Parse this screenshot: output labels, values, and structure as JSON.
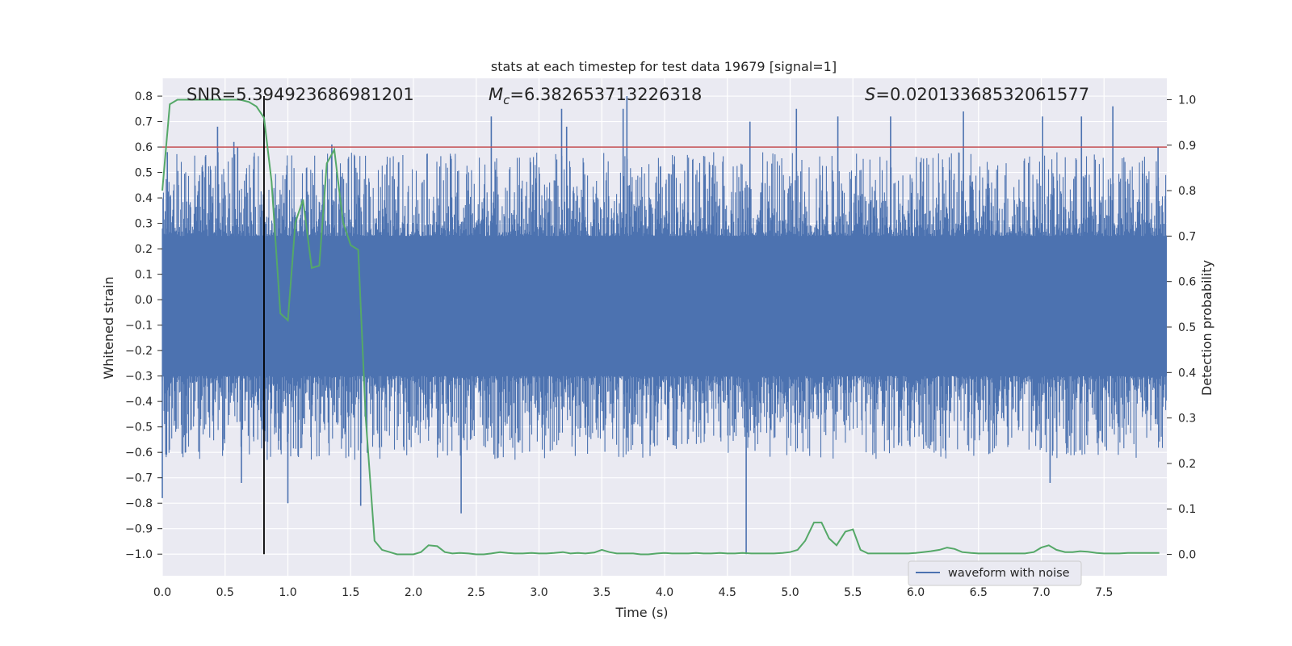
{
  "chart_data": {
    "type": "line",
    "title": "stats at each timestep for test data 19679 [signal=1]",
    "xlabel": "Time (s)",
    "ylabel_left": "Whitened strain",
    "ylabel_right": "Detection probability",
    "xlim": [
      0.0,
      8.0
    ],
    "ylim_left": [
      -1.085,
      0.87
    ],
    "ylim_right": [
      -0.047,
      1.047
    ],
    "x_ticks": [
      0.0,
      0.5,
      1.0,
      1.5,
      2.0,
      2.5,
      3.0,
      3.5,
      4.0,
      4.5,
      5.0,
      5.5,
      6.0,
      6.5,
      7.0,
      7.5
    ],
    "x_tick_labels": [
      "0.0",
      "0.5",
      "1.0",
      "1.5",
      "2.0",
      "2.5",
      "3.0",
      "3.5",
      "4.0",
      "4.5",
      "5.0",
      "5.5",
      "6.0",
      "6.5",
      "7.0",
      "7.5"
    ],
    "y_left_ticks": [
      0.8,
      0.7,
      0.6,
      0.5,
      0.4,
      0.3,
      0.2,
      0.1,
      0.0,
      -0.1,
      -0.2,
      -0.3,
      -0.4,
      -0.5,
      -0.6,
      -0.7,
      -0.8,
      -0.9,
      -1.0
    ],
    "y_left_tick_labels": [
      "0.8",
      "0.7",
      "0.6",
      "0.5",
      "0.4",
      "0.3",
      "0.2",
      "0.1",
      "0.0",
      "−0.1",
      "−0.2",
      "−0.3",
      "−0.4",
      "−0.5",
      "−0.6",
      "−0.7",
      "−0.8",
      "−0.9",
      "−1.0"
    ],
    "y_right_ticks": [
      1.0,
      0.9,
      0.8,
      0.7,
      0.6,
      0.5,
      0.4,
      0.3,
      0.2,
      0.1,
      0.0
    ],
    "y_right_tick_labels": [
      "1.0",
      "0.9",
      "0.8",
      "0.7",
      "0.6",
      "0.5",
      "0.4",
      "0.3",
      "0.2",
      "0.1",
      "0.0"
    ],
    "annotations": {
      "snr": "SNR=5.394923686981201",
      "mc_symbol": "M",
      "mc_subscript": "c",
      "mc_value": "=6.382653713226318",
      "s_symbol": "S",
      "s_value": "=0.020133685320615 77"
    },
    "threshold_line": {
      "value_left_axis": 0.6,
      "color": "#c44e52"
    },
    "marker_line": {
      "x": 0.81,
      "y_from": -1.0,
      "y_to": 0.8,
      "color": "#000000"
    },
    "series": [
      {
        "name": "waveform with noise",
        "axis": "left",
        "color": "#4c72b0",
        "kind": "noise",
        "x_range": [
          0.0,
          8.0
        ],
        "band": [
          -0.3,
          0.25
        ],
        "spikes": [
          {
            "x": 0.0,
            "value": -0.78
          },
          {
            "x": 0.04,
            "value": 0.58
          },
          {
            "x": 0.44,
            "value": 0.68
          },
          {
            "x": 0.57,
            "value": 0.62
          },
          {
            "x": 0.6,
            "value": 0.6
          },
          {
            "x": 0.63,
            "value": -0.72
          },
          {
            "x": 1.0,
            "value": -0.8
          },
          {
            "x": 1.35,
            "value": 0.61
          },
          {
            "x": 1.58,
            "value": -0.81
          },
          {
            "x": 2.38,
            "value": -0.84
          },
          {
            "x": 2.62,
            "value": 0.72
          },
          {
            "x": 3.18,
            "value": 0.75
          },
          {
            "x": 3.22,
            "value": 0.68
          },
          {
            "x": 3.67,
            "value": 0.75
          },
          {
            "x": 3.7,
            "value": 0.8
          },
          {
            "x": 4.65,
            "value": -1.0
          },
          {
            "x": 4.68,
            "value": 0.7
          },
          {
            "x": 5.05,
            "value": 0.75
          },
          {
            "x": 5.38,
            "value": 0.72
          },
          {
            "x": 5.8,
            "value": 0.72
          },
          {
            "x": 6.38,
            "value": 0.74
          },
          {
            "x": 7.01,
            "value": 0.72
          },
          {
            "x": 7.07,
            "value": -0.72
          },
          {
            "x": 7.32,
            "value": 0.72
          },
          {
            "x": 7.57,
            "value": 0.76
          },
          {
            "x": 7.93,
            "value": 0.6
          }
        ]
      },
      {
        "name": "detection probability",
        "axis": "right",
        "color": "#55a868",
        "kind": "line",
        "x": [
          0.0,
          0.06,
          0.12,
          0.18,
          0.25,
          0.31,
          0.37,
          0.44,
          0.5,
          0.56,
          0.62,
          0.69,
          0.75,
          0.81,
          0.87,
          0.94,
          1.0,
          1.06,
          1.12,
          1.19,
          1.25,
          1.31,
          1.37,
          1.44,
          1.5,
          1.56,
          1.62,
          1.69,
          1.75,
          1.81,
          1.87,
          1.94,
          2.0,
          2.06,
          2.12,
          2.19,
          2.25,
          2.31,
          2.37,
          2.44,
          2.5,
          2.56,
          2.62,
          2.69,
          2.75,
          2.81,
          2.87,
          2.94,
          3.0,
          3.06,
          3.12,
          3.19,
          3.25,
          3.31,
          3.37,
          3.44,
          3.5,
          3.56,
          3.62,
          3.69,
          3.75,
          3.81,
          3.87,
          3.94,
          4.0,
          4.06,
          4.12,
          4.19,
          4.25,
          4.31,
          4.37,
          4.44,
          4.5,
          4.56,
          4.62,
          4.69,
          4.75,
          4.81,
          4.87,
          4.94,
          5.0,
          5.06,
          5.12,
          5.19,
          5.25,
          5.31,
          5.37,
          5.44,
          5.5,
          5.56,
          5.62,
          5.69,
          5.75,
          5.81,
          5.87,
          5.94,
          6.0,
          6.06,
          6.12,
          6.19,
          6.25,
          6.31,
          6.37,
          6.44,
          6.5,
          6.56,
          6.62,
          6.69,
          6.75,
          6.81,
          6.87,
          6.94,
          7.0,
          7.06,
          7.12,
          7.19,
          7.25,
          7.31,
          7.37,
          7.44,
          7.5,
          7.56,
          7.62,
          7.69,
          7.75,
          7.81,
          7.87,
          7.94
        ],
        "values": [
          0.8,
          0.99,
          1.0,
          1.0,
          1.0,
          1.0,
          1.0,
          1.0,
          1.0,
          1.0,
          1.0,
          0.995,
          0.985,
          0.96,
          0.82,
          0.53,
          0.515,
          0.73,
          0.78,
          0.63,
          0.635,
          0.86,
          0.89,
          0.73,
          0.68,
          0.67,
          0.3,
          0.03,
          0.01,
          0.005,
          0.0,
          0.0,
          0.0,
          0.005,
          0.02,
          0.018,
          0.005,
          0.002,
          0.003,
          0.002,
          0.0,
          0.0,
          0.002,
          0.005,
          0.003,
          0.002,
          0.002,
          0.003,
          0.002,
          0.002,
          0.003,
          0.005,
          0.002,
          0.003,
          0.002,
          0.004,
          0.01,
          0.005,
          0.002,
          0.002,
          0.002,
          0.0,
          0.0,
          0.002,
          0.003,
          0.002,
          0.002,
          0.002,
          0.003,
          0.002,
          0.002,
          0.003,
          0.002,
          0.002,
          0.003,
          0.002,
          0.002,
          0.002,
          0.002,
          0.003,
          0.005,
          0.01,
          0.03,
          0.07,
          0.07,
          0.035,
          0.02,
          0.05,
          0.055,
          0.01,
          0.002,
          0.002,
          0.002,
          0.002,
          0.002,
          0.002,
          0.003,
          0.005,
          0.007,
          0.01,
          0.015,
          0.012,
          0.005,
          0.003,
          0.002,
          0.002,
          0.002,
          0.002,
          0.002,
          0.002,
          0.002,
          0.005,
          0.015,
          0.02,
          0.01,
          0.005,
          0.005,
          0.007,
          0.006,
          0.003,
          0.002,
          0.002,
          0.002,
          0.003,
          0.003,
          0.003,
          0.003,
          0.003
        ]
      }
    ],
    "legend": {
      "position": "lower-right",
      "entries": [
        {
          "label": "waveform with noise",
          "color": "#4c72b0"
        }
      ]
    },
    "grid": true
  }
}
